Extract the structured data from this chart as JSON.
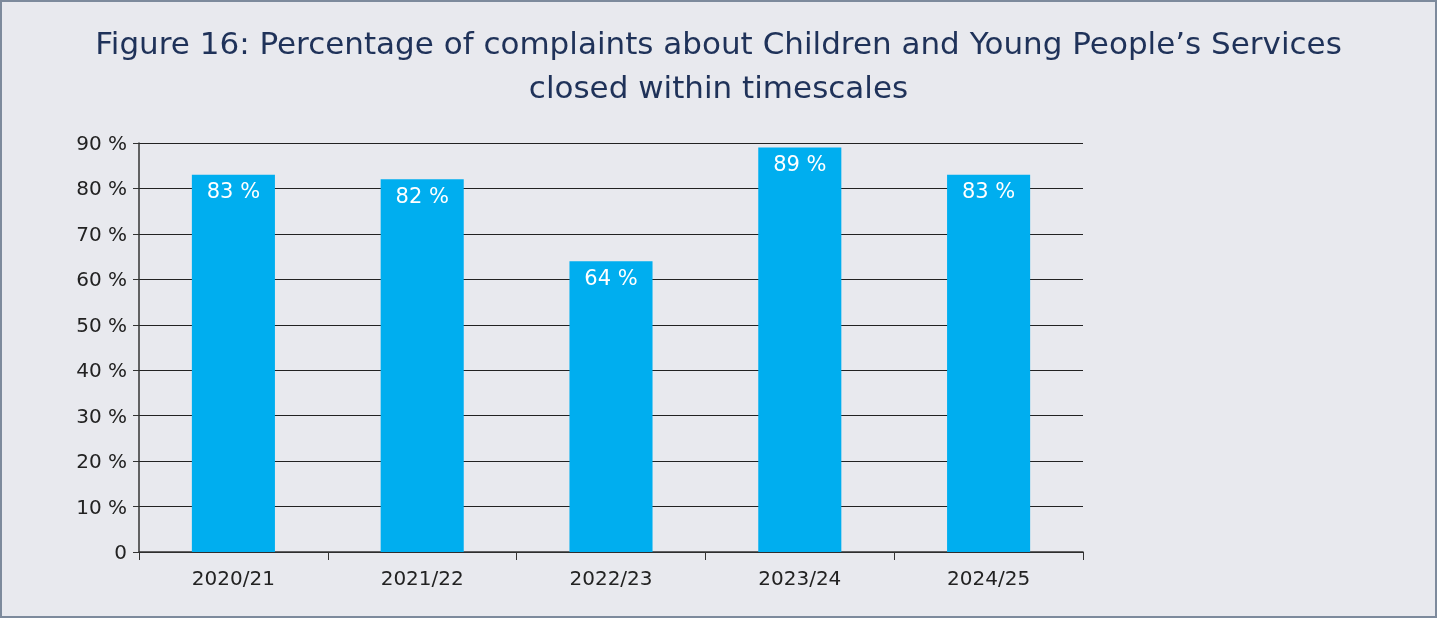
{
  "chart_data": {
    "type": "bar",
    "title": "Figure 16: Percentage of complaints about Children and Young People’s Services\nclosed within timescales",
    "categories": [
      "2020/21",
      "2021/22",
      "2022/23",
      "2023/24",
      "2024/25"
    ],
    "values": [
      83,
      82,
      64,
      89,
      83
    ],
    "value_labels": [
      "83 %",
      "82 %",
      "64 %",
      "89 %",
      "83 %"
    ],
    "color": "#00aeef",
    "ylim": [
      0,
      90
    ],
    "yticks": [
      0,
      {
        "value": 10,
        "label": "10 %"
      },
      {
        "value": 20,
        "label": "20 %"
      },
      {
        "value": 30,
        "label": "30 %"
      },
      {
        "value": 40,
        "label": "40 %"
      },
      {
        "value": 50,
        "label": "50 %"
      },
      {
        "value": 60,
        "label": "60 %"
      },
      {
        "value": 70,
        "label": "70 %"
      },
      {
        "value": 80,
        "label": "80 %"
      },
      {
        "value": 90,
        "label": "90 %"
      }
    ],
    "grid": "y"
  }
}
